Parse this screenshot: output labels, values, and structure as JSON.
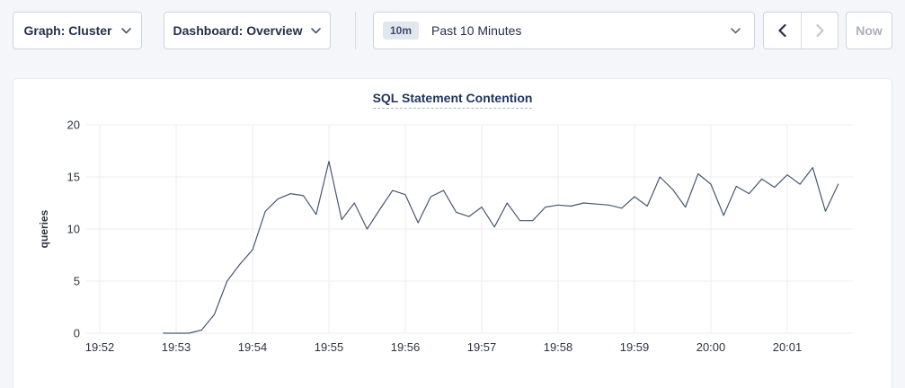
{
  "toolbar": {
    "graph_dropdown": "Graph: Cluster",
    "dashboard_dropdown": "Dashboard: Overview",
    "time_window_badge": "10m",
    "time_window_label": "Past 10 Minutes",
    "now_button": "Now"
  },
  "colors": {
    "page_background": "#f4f6fa",
    "panel_background": "#ffffff",
    "button_border": "#ccd3de",
    "button_text": "#24304a",
    "badge_background": "#e2e6ef",
    "disabled_text": "#a9b0bb",
    "title_text": "#20355e"
  },
  "chart_data": {
    "type": "line",
    "title": "SQL Statement Contention",
    "xlabel": "",
    "ylabel": "queries",
    "ylim": [
      0,
      20
    ],
    "yticks": [
      0,
      5,
      10,
      15,
      20
    ],
    "xticks": [
      "19:52",
      "19:53",
      "19:54",
      "19:55",
      "19:56",
      "19:57",
      "19:58",
      "19:59",
      "20:00",
      "20:01"
    ],
    "grid": true,
    "legend": "none",
    "line_color": "#475872",
    "grid_color": "#ededf0",
    "start_time": "19:52:50",
    "start_offset_seconds": 50,
    "interval_seconds": 10,
    "series": [
      {
        "name": "SQL Statement Contention",
        "values": [
          0,
          0,
          0,
          0.3,
          1.8,
          5,
          6.6,
          8,
          11.7,
          12.9,
          13.4,
          13.2,
          11.4,
          16.5,
          10.9,
          12.5,
          10,
          11.9,
          13.7,
          13.3,
          10.6,
          13.1,
          13.7,
          11.6,
          11.2,
          12.1,
          10.2,
          12.5,
          10.8,
          10.8,
          12.1,
          12.3,
          12.2,
          12.5,
          12.4,
          12.3,
          12,
          13.1,
          12.2,
          15,
          13.8,
          12.1,
          15.3,
          14.3,
          11.3,
          14.1,
          13.4,
          14.8,
          14,
          15.2,
          14.3,
          15.9,
          11.7,
          14.3
        ]
      }
    ]
  }
}
